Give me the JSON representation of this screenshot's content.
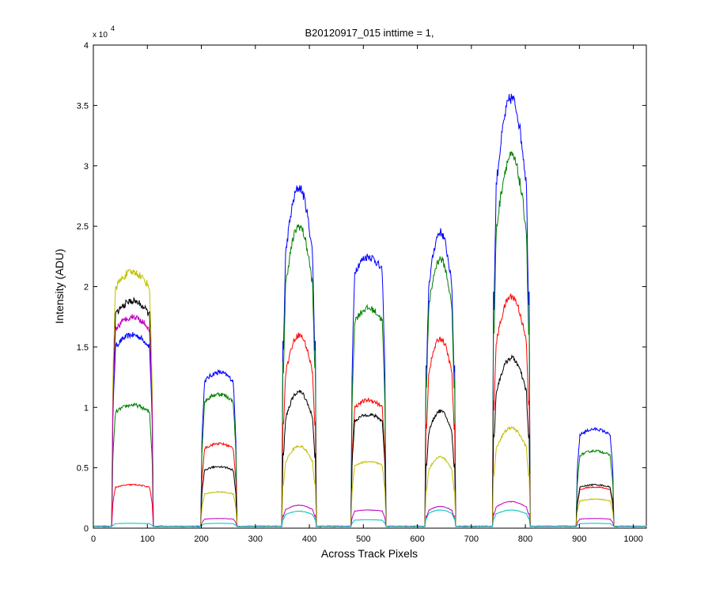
{
  "figure": {
    "title": "B20120917_015 inttime = 1,",
    "xlabel": "Across Track Pixels",
    "ylabel": "Intensity (ADU)",
    "exponent_base": "x 10",
    "exponent_power": "4"
  },
  "chart_data": {
    "type": "line",
    "title": "B20120917_015 inttime = 1,",
    "xlabel": "Across Track Pixels",
    "ylabel": "Intensity (ADU)",
    "xlim": [
      0,
      1024
    ],
    "ylim": [
      0,
      40000
    ],
    "y_scale_label": "x 10^4",
    "x_ticks": [
      0,
      100,
      200,
      300,
      400,
      500,
      600,
      700,
      800,
      900,
      1000
    ],
    "x_tick_labels": [
      "0",
      "100",
      "200",
      "300",
      "400",
      "500",
      "600",
      "700",
      "800",
      "900",
      "1000"
    ],
    "y_ticks": [
      0,
      5000,
      10000,
      15000,
      20000,
      25000,
      30000,
      35000,
      40000
    ],
    "y_tick_labels": [
      "0",
      "0.5",
      "1",
      "1.5",
      "2",
      "2.5",
      "3",
      "3.5",
      "4"
    ],
    "grid": false,
    "legend": "none",
    "baseline": 150,
    "segments": [
      {
        "x_start": 35,
        "x_end": 110,
        "shape": "flat"
      },
      {
        "x_start": 200,
        "x_end": 265,
        "shape": "flat"
      },
      {
        "x_start": 350,
        "x_end": 412,
        "shape": "dome"
      },
      {
        "x_start": 478,
        "x_end": 541,
        "shape": "flat"
      },
      {
        "x_start": 615,
        "x_end": 670,
        "shape": "dome"
      },
      {
        "x_start": 740,
        "x_end": 808,
        "shape": "dome"
      },
      {
        "x_start": 895,
        "x_end": 963,
        "shape": "flat"
      }
    ],
    "series": [
      {
        "color": "#0000ff",
        "values": [
          16000,
          12900,
          28200,
          22500,
          24500,
          35600,
          8200
        ]
      },
      {
        "color": "#008000",
        "values": [
          10200,
          11100,
          25000,
          18200,
          22300,
          30800,
          6400
        ]
      },
      {
        "color": "#ff0000",
        "values": [
          3600,
          7000,
          16000,
          10600,
          15700,
          19200,
          3400
        ]
      },
      {
        "color": "#000000",
        "values": [
          18800,
          5100,
          11300,
          9400,
          9700,
          14100,
          3600
        ]
      },
      {
        "color": "#c0c000",
        "values": [
          21200,
          3000,
          6800,
          5500,
          5900,
          8300,
          2400
        ]
      },
      {
        "color": "#bf00bf",
        "values": [
          17500,
          800,
          1900,
          1500,
          1800,
          2200,
          800
        ]
      },
      {
        "color": "#00bfbf",
        "values": [
          400,
          400,
          1400,
          700,
          1500,
          1500,
          400
        ]
      }
    ]
  }
}
